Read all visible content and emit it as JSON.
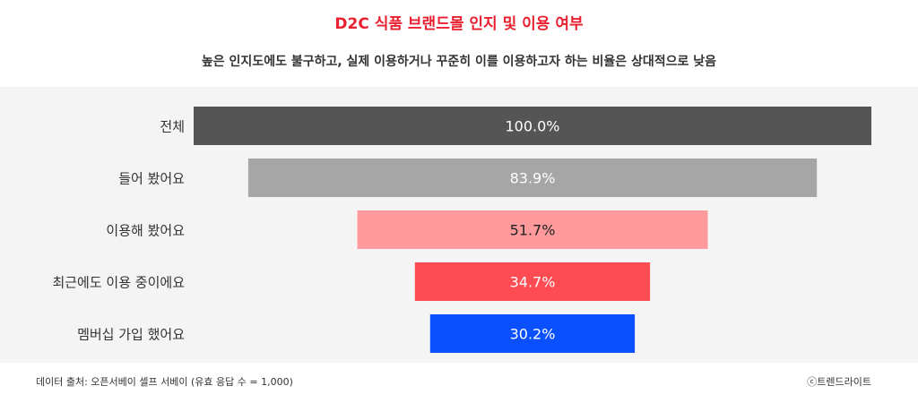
{
  "title": "D2C 식품 브랜드몰 인지 및 이용 여부",
  "subtitle": "높은 인지도에도 불구하고, 실제 이용하거나 꾸준히 이를 이용하고자 하는 비율은 상대적으로 낮음",
  "footer": {
    "source": "데이터 출처: 오픈서베이 셀프 서베이 (유효 응답 수 = 1,000)",
    "credit": "ⓒ트렌드라이트"
  },
  "chart_data": {
    "type": "bar",
    "orientation": "horizontal-funnel",
    "categories": [
      "전체",
      "들어 봤어요",
      "이용해 봤어요",
      "최근에도 이용 중이에요",
      "멤버십 가입 했어요"
    ],
    "values": [
      100.0,
      83.9,
      51.7,
      34.7,
      30.2
    ],
    "value_labels": [
      "100.0%",
      "83.9%",
      "51.7%",
      "34.7%",
      "30.2%"
    ],
    "unit": "%",
    "xlim": [
      0,
      100
    ],
    "grid": false,
    "legend": "none",
    "colors": [
      "#555555",
      "#a6a6a7",
      "#ff9a9c",
      "#ff4b52",
      "#0a50ff"
    ],
    "label_colors": [
      "#ffffff",
      "#ffffff",
      "#222222",
      "#ffffff",
      "#ffffff"
    ]
  }
}
